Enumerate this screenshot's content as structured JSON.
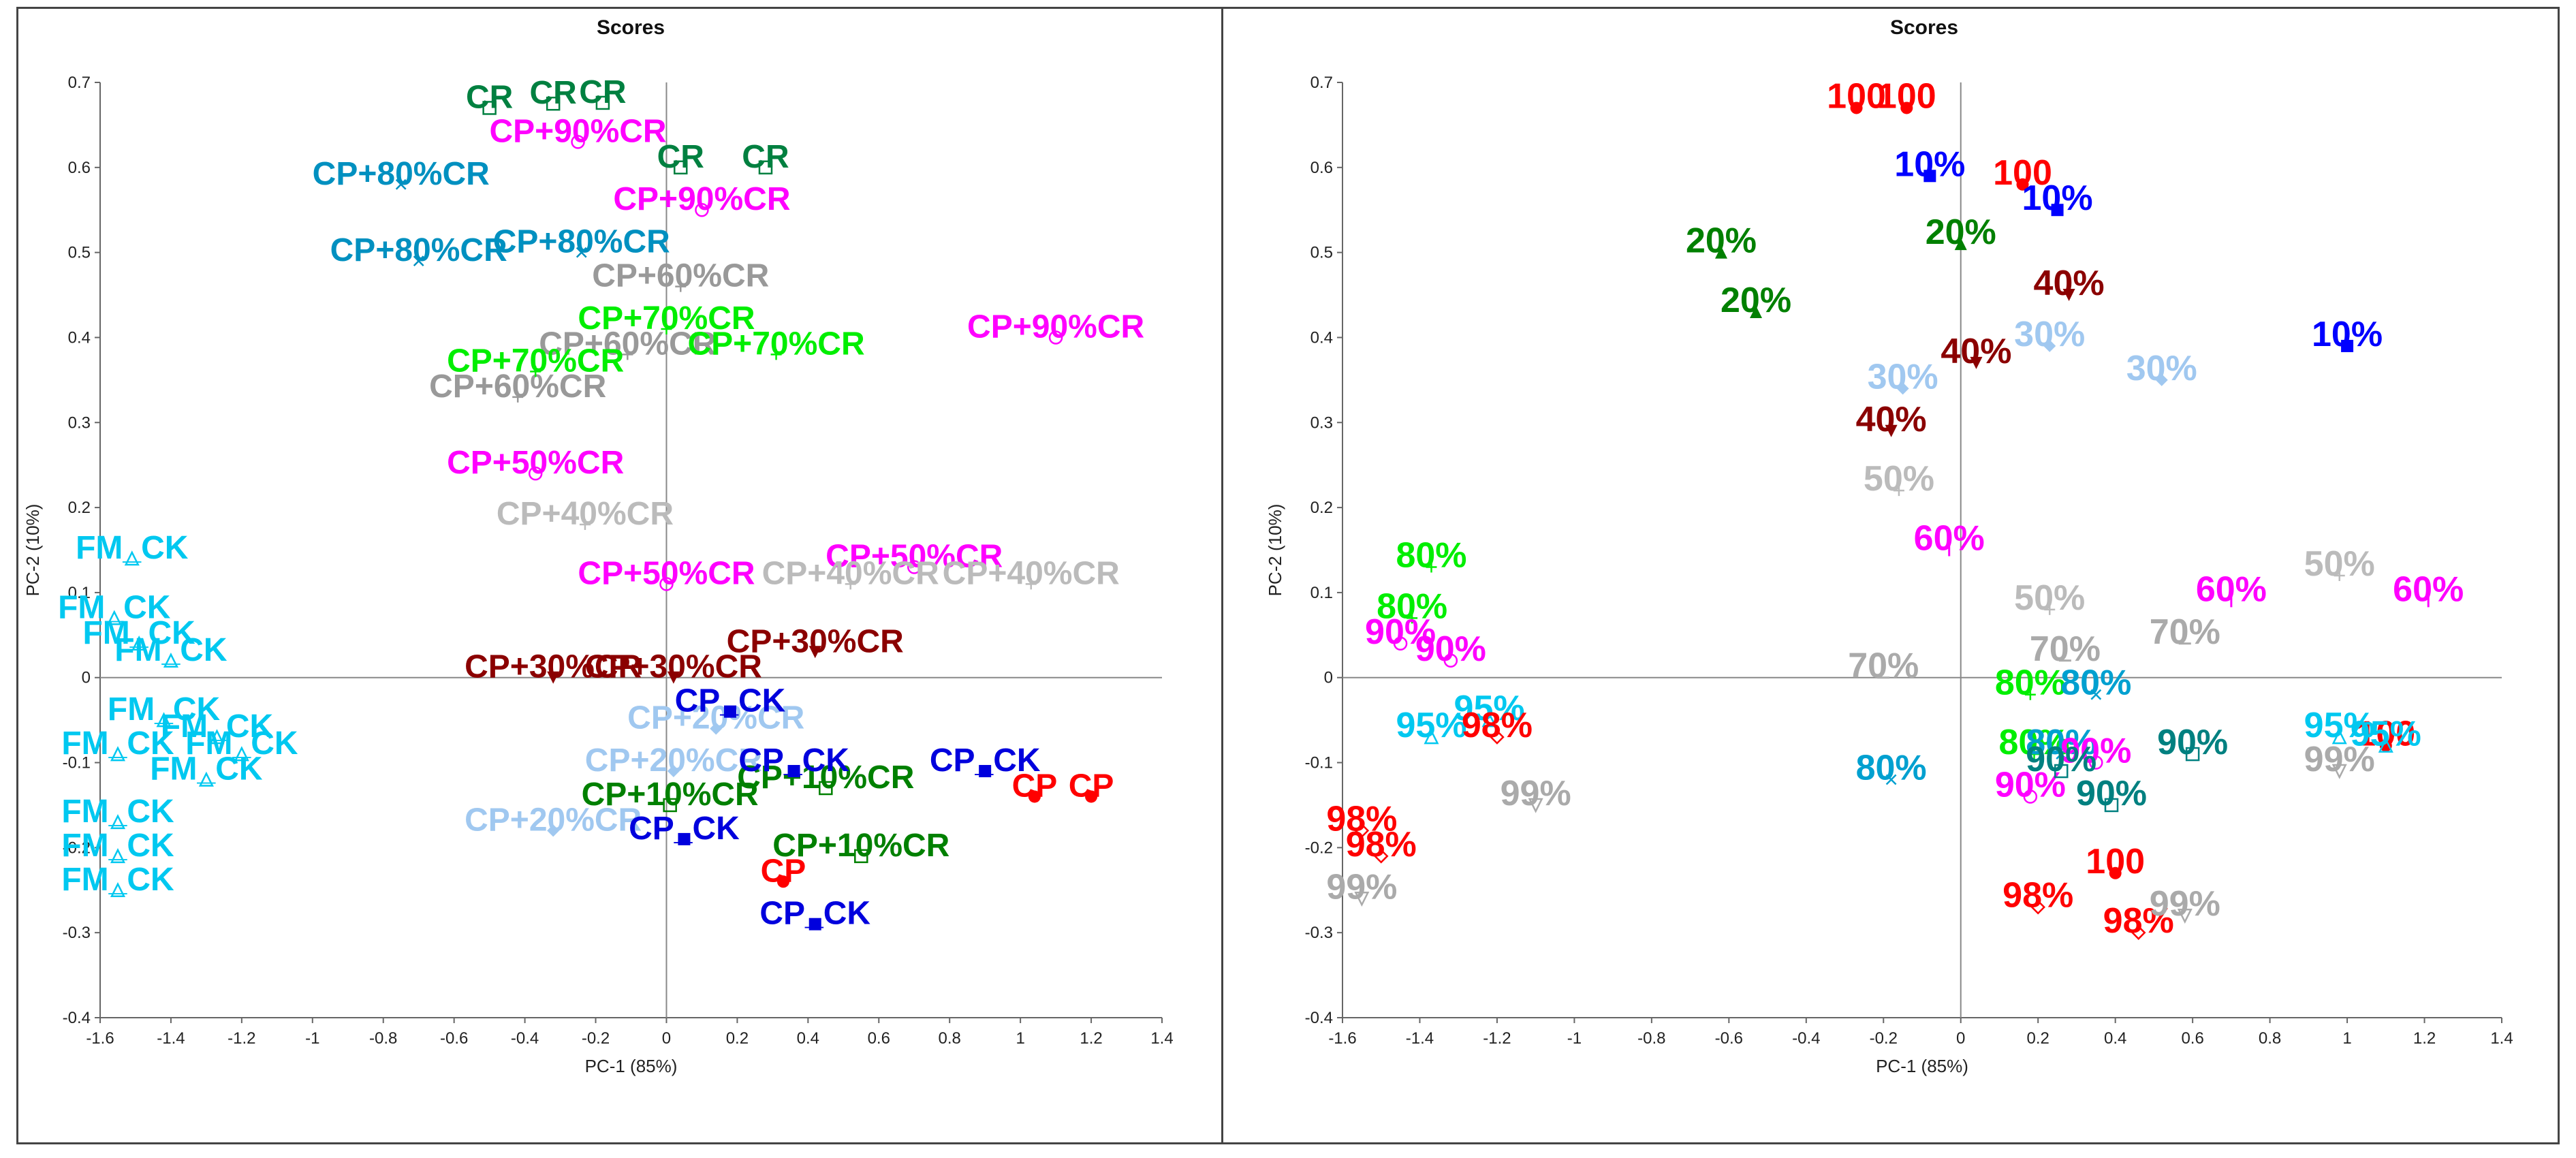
{
  "chart_data": [
    {
      "type": "scatter",
      "title": "Scores",
      "xlabel": "PC-1 (85%)",
      "ylabel": "PC-2 (10%)",
      "xlim": [
        -1.6,
        1.4
      ],
      "ylim": [
        -0.4,
        0.7
      ],
      "xticks": [
        "-1.6",
        "-1.4",
        "-1.2",
        "-1",
        "-0.8",
        "-0.6",
        "-0.4",
        "-0.2",
        "0",
        "0.2",
        "0.4",
        "0.6",
        "0.8",
        "1",
        "1.2",
        "1.4"
      ],
      "yticks": [
        "-0.4",
        "-0.3",
        "-0.2",
        "-0.1",
        "0",
        "0.1",
        "0.2",
        "0.3",
        "0.4",
        "0.5",
        "0.6",
        "0.7"
      ],
      "points": [
        {
          "label": "CR",
          "x": -0.5,
          "y": 0.67,
          "color": "#008040",
          "marker": "square-open"
        },
        {
          "label": "CR",
          "x": -0.32,
          "y": 0.675,
          "color": "#008040",
          "marker": "square-open"
        },
        {
          "label": "CR",
          "x": -0.18,
          "y": 0.676,
          "color": "#008040",
          "marker": "square-open"
        },
        {
          "label": "CR",
          "x": 0.04,
          "y": 0.6,
          "color": "#008040",
          "marker": "square-open"
        },
        {
          "label": "CR",
          "x": 0.28,
          "y": 0.6,
          "color": "#008040",
          "marker": "square-open"
        },
        {
          "label": "CP+90%CR",
          "x": -0.25,
          "y": 0.63,
          "color": "#ff00ff",
          "marker": "circle-open"
        },
        {
          "label": "CP+90%CR",
          "x": 0.1,
          "y": 0.55,
          "color": "#ff00ff",
          "marker": "circle-open"
        },
        {
          "label": "CP+90%CR",
          "x": 1.1,
          "y": 0.4,
          "color": "#ff00ff",
          "marker": "circle-open"
        },
        {
          "label": "CP+80%CR",
          "x": -0.75,
          "y": 0.58,
          "color": "#0090c0",
          "marker": "x"
        },
        {
          "label": "CP+80%CR",
          "x": -0.7,
          "y": 0.49,
          "color": "#0090c0",
          "marker": "x"
        },
        {
          "label": "CP+80%CR",
          "x": -0.24,
          "y": 0.5,
          "color": "#0090c0",
          "marker": "x"
        },
        {
          "label": "CP+60%CR",
          "x": 0.04,
          "y": 0.46,
          "color": "#999999",
          "marker": "plus"
        },
        {
          "label": "CP+60%CR",
          "x": -0.11,
          "y": 0.38,
          "color": "#999999",
          "marker": "plus"
        },
        {
          "label": "CP+60%CR",
          "x": -0.42,
          "y": 0.33,
          "color": "#999999",
          "marker": "plus"
        },
        {
          "label": "CP+70%CR",
          "x": 0.0,
          "y": 0.41,
          "color": "#00ee00",
          "marker": "plus"
        },
        {
          "label": "CP+70%CR",
          "x": -0.37,
          "y": 0.36,
          "color": "#00ee00",
          "marker": "plus"
        },
        {
          "label": "CP+70%CR",
          "x": 0.31,
          "y": 0.38,
          "color": "#00ee00",
          "marker": "plus"
        },
        {
          "label": "CP+50%CR",
          "x": -0.37,
          "y": 0.24,
          "color": "#ff00ff",
          "marker": "circle-open"
        },
        {
          "label": "CP+50%CR",
          "x": 0.0,
          "y": 0.11,
          "color": "#ff00ff",
          "marker": "circle-open"
        },
        {
          "label": "CP+50%CR",
          "x": 0.7,
          "y": 0.13,
          "color": "#ff00ff",
          "marker": "circle-open"
        },
        {
          "label": "CP+40%CR",
          "x": -0.23,
          "y": 0.18,
          "color": "#bbbbbb",
          "marker": "plus"
        },
        {
          "label": "CP+40%CR",
          "x": 0.52,
          "y": 0.11,
          "color": "#bbbbbb",
          "marker": "plus"
        },
        {
          "label": "CP+40%CR",
          "x": 1.03,
          "y": 0.11,
          "color": "#bbbbbb",
          "marker": "plus"
        },
        {
          "label": "CP+30%CR",
          "x": -0.32,
          "y": 0.0,
          "color": "#8b0000",
          "marker": "triangle-down"
        },
        {
          "label": "CP+30%CR",
          "x": 0.02,
          "y": 0.0,
          "color": "#8b0000",
          "marker": "triangle-down"
        },
        {
          "label": "CP+30%CR",
          "x": 0.42,
          "y": 0.03,
          "color": "#8b0000",
          "marker": "triangle-down"
        },
        {
          "label": "CP+20%CR",
          "x": -0.32,
          "y": -0.18,
          "color": "#a0c8f0",
          "marker": "diamond"
        },
        {
          "label": "CP+20%CR",
          "x": 0.14,
          "y": -0.06,
          "color": "#a0c8f0",
          "marker": "diamond"
        },
        {
          "label": "CP+20%CR",
          "x": 0.02,
          "y": -0.11,
          "color": "#a0c8f0",
          "marker": "diamond"
        },
        {
          "label": "CP+10%CR",
          "x": 0.01,
          "y": -0.15,
          "color": "#008000",
          "marker": "square-open"
        },
        {
          "label": "CP+10%CR",
          "x": 0.45,
          "y": -0.13,
          "color": "#008000",
          "marker": "square-open"
        },
        {
          "label": "CP+10%CR",
          "x": 0.55,
          "y": -0.21,
          "color": "#008000",
          "marker": "square-open"
        },
        {
          "label": "CP_CK",
          "x": 0.18,
          "y": -0.04,
          "color": "#0000dd",
          "marker": "square"
        },
        {
          "label": "CP_CK",
          "x": 0.05,
          "y": -0.19,
          "color": "#0000dd",
          "marker": "square"
        },
        {
          "label": "CP_CK",
          "x": 0.42,
          "y": -0.29,
          "color": "#0000dd",
          "marker": "square"
        },
        {
          "label": "CP_CK",
          "x": 0.9,
          "y": -0.11,
          "color": "#0000dd",
          "marker": "square"
        },
        {
          "label": "CP_CK",
          "x": 0.36,
          "y": -0.11,
          "color": "#0000dd",
          "marker": "square"
        },
        {
          "label": "CP",
          "x": 0.33,
          "y": -0.24,
          "color": "#ff0000",
          "marker": "circle"
        },
        {
          "label": "CP",
          "x": 1.2,
          "y": -0.14,
          "color": "#ff0000",
          "marker": "circle"
        },
        {
          "label": "CP",
          "x": 1.04,
          "y": -0.14,
          "color": "#ff0000",
          "marker": "circle"
        },
        {
          "label": "FM_CK",
          "x": -1.51,
          "y": 0.14,
          "color": "#00c8f0",
          "marker": "triangle-open"
        },
        {
          "label": "FM_CK",
          "x": -1.56,
          "y": 0.07,
          "color": "#00c8f0",
          "marker": "triangle-open"
        },
        {
          "label": "FM_CK",
          "x": -1.49,
          "y": 0.04,
          "color": "#00c8f0",
          "marker": "triangle-open"
        },
        {
          "label": "FM_CK",
          "x": -1.4,
          "y": 0.02,
          "color": "#00c8f0",
          "marker": "triangle-open"
        },
        {
          "label": "FM_CK",
          "x": -1.42,
          "y": -0.05,
          "color": "#00c8f0",
          "marker": "triangle-open"
        },
        {
          "label": "FM_CK",
          "x": -1.55,
          "y": -0.09,
          "color": "#00c8f0",
          "marker": "triangle-open"
        },
        {
          "label": "FM_CK",
          "x": -1.27,
          "y": -0.07,
          "color": "#00c8f0",
          "marker": "triangle-open"
        },
        {
          "label": "FM_CK",
          "x": -1.2,
          "y": -0.09,
          "color": "#00c8f0",
          "marker": "triangle-open"
        },
        {
          "label": "FM_CK",
          "x": -1.3,
          "y": -0.12,
          "color": "#00c8f0",
          "marker": "triangle-open"
        },
        {
          "label": "FM_CK",
          "x": -1.55,
          "y": -0.17,
          "color": "#00c8f0",
          "marker": "triangle-open"
        },
        {
          "label": "FM_CK",
          "x": -1.55,
          "y": -0.21,
          "color": "#00c8f0",
          "marker": "triangle-open"
        },
        {
          "label": "FM_CK",
          "x": -1.55,
          "y": -0.25,
          "color": "#00c8f0",
          "marker": "triangle-open"
        }
      ]
    },
    {
      "type": "scatter",
      "title": "Scores",
      "xlabel": "PC-1 (85%)",
      "ylabel": "PC-2 (10%)",
      "xlim": [
        -1.6,
        1.4
      ],
      "ylim": [
        -0.4,
        0.7
      ],
      "xticks": [
        "-1.6",
        "-1.4",
        "-1.2",
        "-1",
        "-0.8",
        "-0.6",
        "-0.4",
        "-0.2",
        "0",
        "0.2",
        "0.4",
        "0.6",
        "0.8",
        "1",
        "1.2",
        "1.4"
      ],
      "yticks": [
        "-0.4",
        "-0.3",
        "-0.2",
        "-0.1",
        "0",
        "0.1",
        "0.2",
        "0.3",
        "0.4",
        "0.5",
        "0.6",
        "0.7"
      ],
      "points": [
        {
          "label": "100",
          "x": -0.27,
          "y": 0.67,
          "color": "#ff0000",
          "marker": "circle"
        },
        {
          "label": "100",
          "x": -0.14,
          "y": 0.67,
          "color": "#ff0000",
          "marker": "circle"
        },
        {
          "label": "100",
          "x": 0.16,
          "y": 0.58,
          "color": "#ff0000",
          "marker": "circle"
        },
        {
          "label": "100",
          "x": 1.1,
          "y": -0.08,
          "color": "#ff0000",
          "marker": "circle"
        },
        {
          "label": "100",
          "x": 0.4,
          "y": -0.23,
          "color": "#ff0000",
          "marker": "circle"
        },
        {
          "label": "10%",
          "x": -0.08,
          "y": 0.59,
          "color": "#0000ff",
          "marker": "square"
        },
        {
          "label": "10%",
          "x": 0.25,
          "y": 0.55,
          "color": "#0000ff",
          "marker": "square"
        },
        {
          "label": "10%",
          "x": 1.0,
          "y": 0.39,
          "color": "#0000ff",
          "marker": "square"
        },
        {
          "label": "20%",
          "x": -0.62,
          "y": 0.5,
          "color": "#008000",
          "marker": "triangle"
        },
        {
          "label": "20%",
          "x": -0.53,
          "y": 0.43,
          "color": "#008000",
          "marker": "triangle"
        },
        {
          "label": "20%",
          "x": 0.0,
          "y": 0.51,
          "color": "#008000",
          "marker": "triangle"
        },
        {
          "label": "40%",
          "x": 0.28,
          "y": 0.45,
          "color": "#8b0000",
          "marker": "triangle-down"
        },
        {
          "label": "40%",
          "x": 0.04,
          "y": 0.37,
          "color": "#8b0000",
          "marker": "triangle-down"
        },
        {
          "label": "40%",
          "x": -0.18,
          "y": 0.29,
          "color": "#8b0000",
          "marker": "triangle-down"
        },
        {
          "label": "30%",
          "x": 0.23,
          "y": 0.39,
          "color": "#a0c8f0",
          "marker": "diamond"
        },
        {
          "label": "30%",
          "x": -0.15,
          "y": 0.34,
          "color": "#a0c8f0",
          "marker": "diamond"
        },
        {
          "label": "30%",
          "x": 0.52,
          "y": 0.35,
          "color": "#a0c8f0",
          "marker": "diamond"
        },
        {
          "label": "50%",
          "x": -0.16,
          "y": 0.22,
          "color": "#bbbbbb",
          "marker": "plus"
        },
        {
          "label": "50%",
          "x": 0.23,
          "y": 0.08,
          "color": "#bbbbbb",
          "marker": "plus"
        },
        {
          "label": "50%",
          "x": 0.98,
          "y": 0.12,
          "color": "#bbbbbb",
          "marker": "plus"
        },
        {
          "label": "60%",
          "x": -0.03,
          "y": 0.15,
          "color": "#ff00ff",
          "marker": "bar"
        },
        {
          "label": "60%",
          "x": 0.7,
          "y": 0.09,
          "color": "#ff00ff",
          "marker": "bar"
        },
        {
          "label": "60%",
          "x": 1.21,
          "y": 0.09,
          "color": "#ff00ff",
          "marker": "bar"
        },
        {
          "label": "70%",
          "x": -0.2,
          "y": 0.0,
          "color": "#aaaaaa",
          "marker": "dash"
        },
        {
          "label": "70%",
          "x": 0.27,
          "y": 0.02,
          "color": "#aaaaaa",
          "marker": "dash"
        },
        {
          "label": "70%",
          "x": 0.58,
          "y": 0.04,
          "color": "#aaaaaa",
          "marker": "dash"
        },
        {
          "label": "80%",
          "x": -1.37,
          "y": 0.13,
          "color": "#00ee00",
          "marker": "plus"
        },
        {
          "label": "80%",
          "x": -1.42,
          "y": 0.07,
          "color": "#00ee00",
          "marker": "plus"
        },
        {
          "label": "80%",
          "x": 0.18,
          "y": -0.02,
          "color": "#00ee00",
          "marker": "plus"
        },
        {
          "label": "80%",
          "x": 0.19,
          "y": -0.09,
          "color": "#00ee00",
          "marker": "plus"
        },
        {
          "label": "80%",
          "x": -0.18,
          "y": -0.12,
          "color": "#00a0d0",
          "marker": "x"
        },
        {
          "label": "80%",
          "x": 0.35,
          "y": -0.02,
          "color": "#00a0d0",
          "marker": "x"
        },
        {
          "label": "80%",
          "x": 0.26,
          "y": -0.09,
          "color": "#00a0d0",
          "marker": "x"
        },
        {
          "label": "90%",
          "x": -1.45,
          "y": 0.04,
          "color": "#ff00ff",
          "marker": "circle-open"
        },
        {
          "label": "90%",
          "x": -1.32,
          "y": 0.02,
          "color": "#ff00ff",
          "marker": "circle-open"
        },
        {
          "label": "90%",
          "x": 0.35,
          "y": -0.1,
          "color": "#ff00ff",
          "marker": "circle-open"
        },
        {
          "label": "90%",
          "x": 0.18,
          "y": -0.14,
          "color": "#ff00ff",
          "marker": "circle-open"
        },
        {
          "label": "90%",
          "x": 0.26,
          "y": -0.11,
          "color": "#008080",
          "marker": "square-open"
        },
        {
          "label": "90%",
          "x": 0.6,
          "y": -0.09,
          "color": "#008080",
          "marker": "square-open"
        },
        {
          "label": "90%",
          "x": 0.39,
          "y": -0.15,
          "color": "#008080",
          "marker": "square-open"
        },
        {
          "label": "95%",
          "x": -1.37,
          "y": -0.07,
          "color": "#00c8f0",
          "marker": "triangle-open"
        },
        {
          "label": "95%",
          "x": -1.22,
          "y": -0.05,
          "color": "#00c8f0",
          "marker": "triangle-open"
        },
        {
          "label": "95%",
          "x": 0.98,
          "y": -0.07,
          "color": "#00c8f0",
          "marker": "triangle-open"
        },
        {
          "label": "95%",
          "x": 1.1,
          "y": -0.08,
          "color": "#00c8f0",
          "marker": "triangle-open"
        },
        {
          "label": "98%",
          "x": -1.2,
          "y": -0.07,
          "color": "#ff0000",
          "marker": "diamond-open"
        },
        {
          "label": "98%",
          "x": -1.55,
          "y": -0.18,
          "color": "#ff0000",
          "marker": "diamond-open"
        },
        {
          "label": "98%",
          "x": -1.5,
          "y": -0.21,
          "color": "#ff0000",
          "marker": "diamond-open"
        },
        {
          "label": "98%",
          "x": 0.2,
          "y": -0.27,
          "color": "#ff0000",
          "marker": "diamond-open"
        },
        {
          "label": "98%",
          "x": 0.46,
          "y": -0.3,
          "color": "#ff0000",
          "marker": "diamond-open"
        },
        {
          "label": "99%",
          "x": -1.1,
          "y": -0.15,
          "color": "#aaaaaa",
          "marker": "triangle-down-open"
        },
        {
          "label": "99%",
          "x": -1.55,
          "y": -0.26,
          "color": "#aaaaaa",
          "marker": "triangle-down-open"
        },
        {
          "label": "99%",
          "x": 0.58,
          "y": -0.28,
          "color": "#aaaaaa",
          "marker": "triangle-down-open"
        },
        {
          "label": "99%",
          "x": 0.98,
          "y": -0.11,
          "color": "#aaaaaa",
          "marker": "triangle-down-open"
        }
      ]
    }
  ]
}
